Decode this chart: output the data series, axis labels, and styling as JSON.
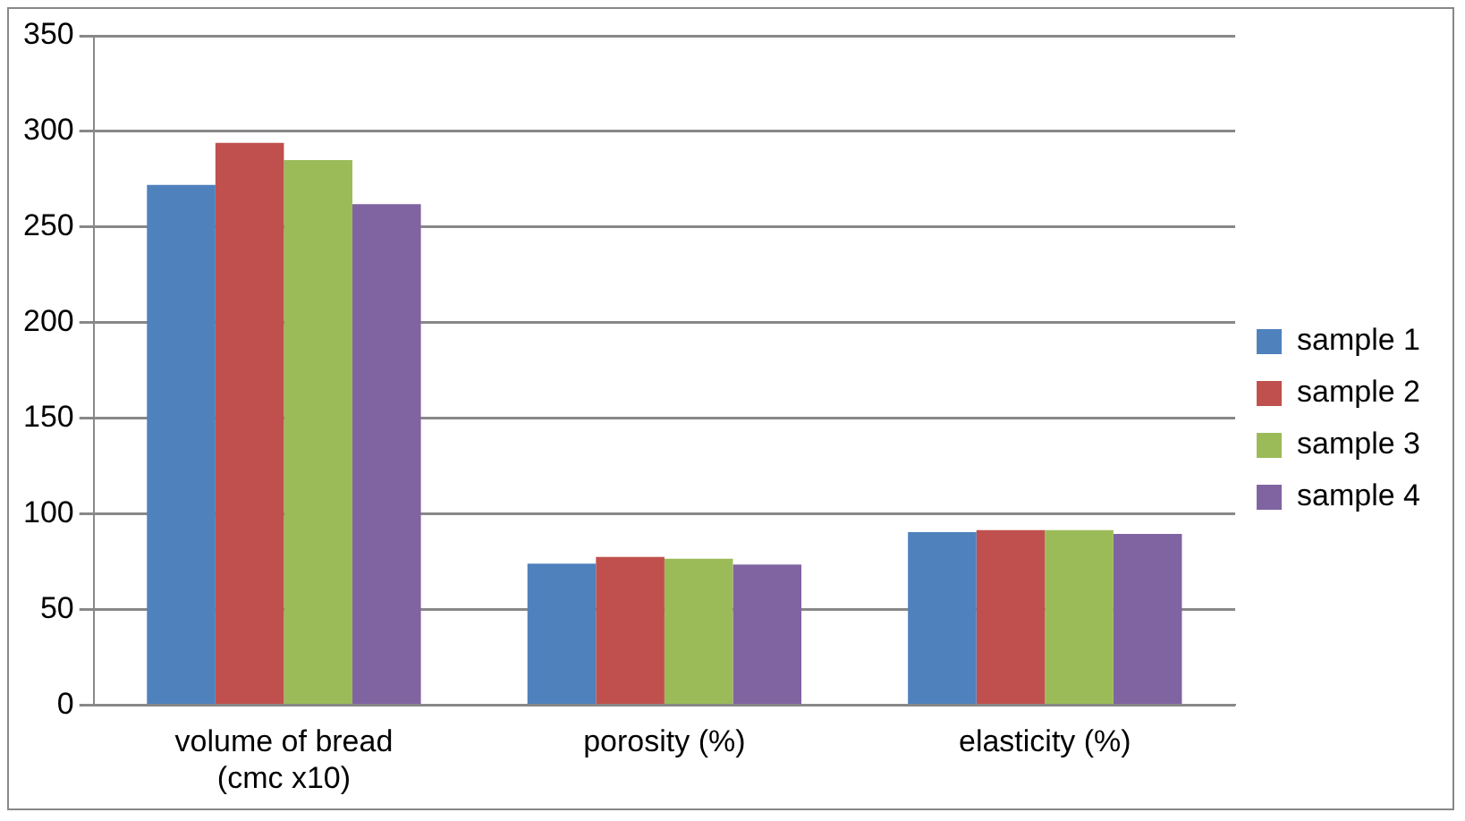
{
  "chart_data": {
    "type": "bar",
    "categories": [
      "volume of bread\n(cmc x10)",
      "porosity (%)",
      "elasticity (%)"
    ],
    "series": [
      {
        "name": "sample 1",
        "color": "#4f81bd",
        "values": [
          272,
          74,
          90.5
        ]
      },
      {
        "name": "sample 2",
        "color": "#c0504d",
        "values": [
          294,
          77.5,
          91.5
        ]
      },
      {
        "name": "sample 3",
        "color": "#9bbb59",
        "values": [
          285,
          76.5,
          91.5
        ]
      },
      {
        "name": "sample 4",
        "color": "#8064a2",
        "values": [
          262,
          73.5,
          89.5
        ]
      }
    ],
    "ylim": [
      0,
      350
    ],
    "yticks": [
      0,
      50,
      100,
      150,
      200,
      250,
      300,
      350
    ],
    "grid": "y",
    "legend": "right"
  }
}
